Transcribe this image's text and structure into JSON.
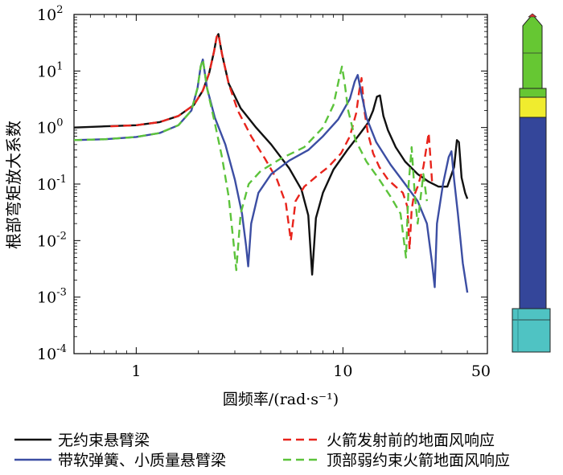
{
  "chart_data": {
    "type": "line",
    "xscale": "log",
    "yscale": "log",
    "xlim": [
      0.5,
      50
    ],
    "ylim": [
      0.0001,
      100
    ],
    "xlabel": "圆频率/(rad·s⁻¹)",
    "ylabel": "根部弯矩放大系数",
    "xticks": [
      {
        "value": 1,
        "label": "1"
      },
      {
        "value": 10,
        "label": "10"
      },
      {
        "value": 50,
        "label": "50"
      }
    ],
    "yticks": [
      {
        "value": 100,
        "base": "10",
        "exp": "2"
      },
      {
        "value": 10,
        "base": "10",
        "exp": "1"
      },
      {
        "value": 1,
        "base": "10",
        "exp": "0"
      },
      {
        "value": 0.1,
        "base": "10",
        "exp": "-1"
      },
      {
        "value": 0.01,
        "base": "10",
        "exp": "-2"
      },
      {
        "value": 0.001,
        "base": "10",
        "exp": "-3"
      },
      {
        "value": 0.0001,
        "base": "10",
        "exp": "-4"
      }
    ],
    "series": [
      {
        "name": "无约束悬臂梁",
        "color": "#111111",
        "dash": "solid",
        "x": [
          0.5,
          0.7,
          1.0,
          1.3,
          1.6,
          1.9,
          2.1,
          2.25,
          2.38,
          2.45,
          2.5,
          2.6,
          2.8,
          3.2,
          3.8,
          4.5,
          5.5,
          6.3,
          6.8,
          7.1,
          7.4,
          8.0,
          9.0,
          10.5,
          12.0,
          13.2,
          14.0,
          14.6,
          15.1,
          15.7,
          16.5,
          18.0,
          20.0,
          23.0,
          26.0,
          29.0,
          32.0,
          34.5,
          35.6,
          36.4,
          37.5,
          39.0,
          40.0
        ],
        "y": [
          1.0,
          1.05,
          1.1,
          1.25,
          1.6,
          2.5,
          4.5,
          9,
          22,
          40,
          45,
          20,
          6,
          2.2,
          1.0,
          0.5,
          0.19,
          0.08,
          0.028,
          0.0025,
          0.025,
          0.07,
          0.18,
          0.4,
          0.75,
          1.2,
          2.0,
          3.5,
          3.7,
          1.6,
          0.9,
          0.45,
          0.25,
          0.15,
          0.11,
          0.09,
          0.09,
          0.2,
          0.6,
          0.55,
          0.13,
          0.07,
          0.055
        ]
      },
      {
        "name": "火箭发射前的地面风响应",
        "color": "#e8241c",
        "dash": "10 6",
        "x": [
          0.75,
          1.0,
          1.3,
          1.6,
          1.9,
          2.1,
          2.25,
          2.38,
          2.45,
          2.5,
          2.6,
          2.8,
          3.1,
          3.6,
          4.2,
          4.8,
          5.3,
          5.6,
          5.9,
          6.5,
          7.5,
          8.5,
          9.8,
          10.8,
          11.6,
          12.0,
          12.3,
          12.7,
          13.2,
          14.0,
          15.0,
          16.5,
          18.0,
          19.5,
          20.5,
          21.0,
          21.5,
          22.0,
          23.0,
          24.5,
          25.5,
          26.0,
          26.5,
          27.0
        ],
        "y": [
          1.05,
          1.1,
          1.25,
          1.6,
          2.5,
          4.5,
          9,
          22,
          40,
          45,
          20,
          6,
          2.0,
          0.7,
          0.28,
          0.12,
          0.045,
          0.01,
          0.05,
          0.09,
          0.14,
          0.2,
          0.35,
          0.7,
          1.8,
          4.5,
          7.5,
          2.0,
          0.8,
          0.35,
          0.2,
          0.12,
          0.09,
          0.07,
          0.04,
          0.007,
          0.035,
          0.06,
          0.09,
          0.2,
          0.5,
          0.8,
          0.3,
          0.11
        ]
      },
      {
        "name": "带软弹簧、小质量悬臂梁",
        "color": "#3c4ea3",
        "dash": "solid",
        "x": [
          0.5,
          0.7,
          1.0,
          1.3,
          1.6,
          1.85,
          1.98,
          2.05,
          2.1,
          2.2,
          2.4,
          2.7,
          3.0,
          3.25,
          3.4,
          3.48,
          3.6,
          3.9,
          4.5,
          5.5,
          6.8,
          8.0,
          9.5,
          10.8,
          11.4,
          11.8,
          12.2,
          13.0,
          14.5,
          17.0,
          20.0,
          23.0,
          25.5,
          27.0,
          27.8,
          28.5,
          30.5,
          32.5,
          33.5,
          34.5,
          36.0,
          38.0,
          40.0
        ],
        "y": [
          0.6,
          0.62,
          0.68,
          0.8,
          1.1,
          2.0,
          5.0,
          12,
          16,
          5,
          1.5,
          0.5,
          0.12,
          0.03,
          0.008,
          0.0035,
          0.02,
          0.07,
          0.15,
          0.26,
          0.4,
          0.7,
          1.4,
          3.2,
          6.5,
          8.5,
          4.5,
          1.5,
          0.55,
          0.22,
          0.1,
          0.05,
          0.02,
          0.004,
          0.0015,
          0.02,
          0.1,
          0.3,
          0.38,
          0.12,
          0.03,
          0.004,
          0.0012
        ]
      },
      {
        "name": "顶部弱约束火箭地面风响应",
        "color": "#5cc33b",
        "dash": "10 6",
        "x": [
          0.5,
          0.7,
          1.0,
          1.3,
          1.6,
          1.85,
          1.98,
          2.05,
          2.1,
          2.2,
          2.4,
          2.6,
          2.8,
          2.95,
          3.05,
          3.2,
          3.5,
          4.0,
          5.0,
          6.5,
          8.0,
          9.0,
          9.6,
          9.9,
          10.2,
          10.6,
          11.5,
          13.0,
          15.0,
          17.0,
          19.0,
          20.2,
          20.8,
          21.5,
          22.3,
          23.0,
          23.8,
          24.5,
          25.5
        ],
        "y": [
          0.6,
          0.62,
          0.68,
          0.8,
          1.1,
          2.0,
          5.0,
          12,
          16,
          5,
          1.2,
          0.3,
          0.06,
          0.01,
          0.003,
          0.03,
          0.1,
          0.17,
          0.28,
          0.45,
          1.0,
          2.5,
          7.5,
          12,
          6,
          2.0,
          0.6,
          0.25,
          0.12,
          0.06,
          0.03,
          0.005,
          0.1,
          0.45,
          0.06,
          0.02,
          0.06,
          0.15,
          0.05
        ]
      }
    ],
    "legend": {
      "placement": "bottom",
      "columns": 2,
      "order": [
        "无约束悬臂梁",
        "火箭发射前的地面风响应",
        "带软弹簧、小质量悬臂梁",
        "顶部弱约束火箭地面风响应"
      ]
    },
    "inset_image": "rocket-illustration"
  }
}
